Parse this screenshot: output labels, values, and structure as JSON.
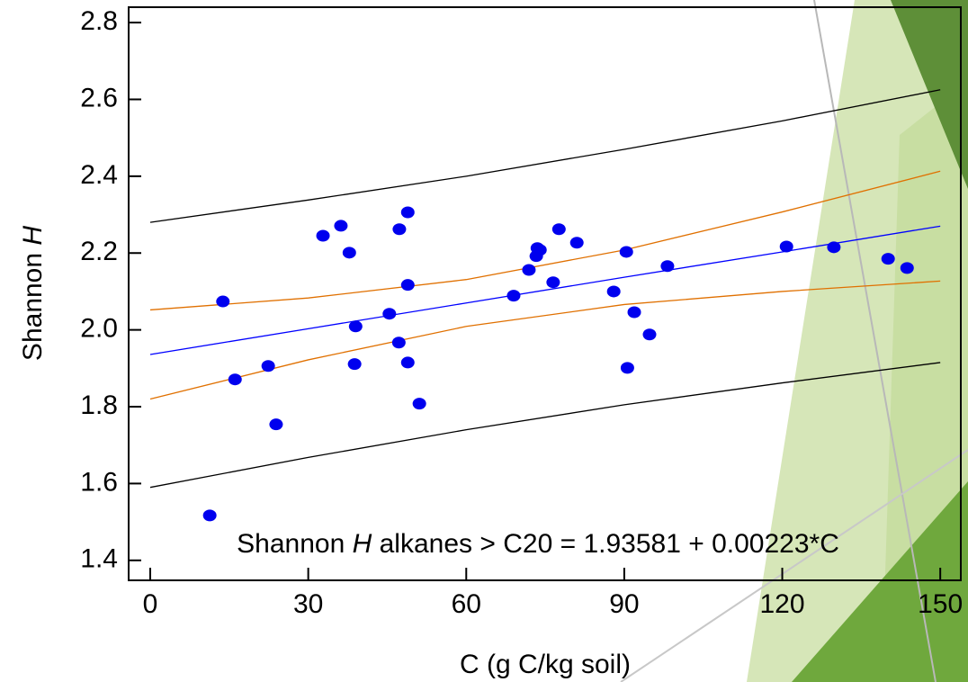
{
  "chart_data": {
    "type": "scatter",
    "xlabel": "C (g C/kg soil)",
    "ylabel_parts": [
      "Shannon",
      "H"
    ],
    "annotation_parts": [
      "Shannon",
      "H",
      "alkanes > C20 = 1.93581 + 0.00223*C"
    ],
    "xlim": [
      -4.1,
      153.9
    ],
    "ylim": [
      1.348,
      2.84
    ],
    "xticks": [
      0,
      30,
      60,
      90,
      120,
      150
    ],
    "yticks": [
      1.4,
      1.6,
      1.8,
      {
        "value": 2,
        "label": "2.0"
      },
      2.2,
      2.4,
      2.6,
      2.8
    ],
    "points": {
      "color": "#0000ee",
      "x": [
        11.3,
        13.8,
        16.1,
        22.4,
        23.9,
        32.8,
        36.2,
        37.8,
        39.0,
        38.8,
        45.4,
        47.3,
        47.2,
        48.9,
        48.9,
        48.9,
        51.1,
        69.0,
        71.9,
        73.5,
        73.3,
        74.0,
        76.5,
        77.6,
        81.0,
        88.0,
        90.4,
        90.6,
        91.9,
        94.8,
        98.2,
        120.8,
        129.8,
        140.1,
        143.7
      ],
      "y": [
        1.517,
        2.074,
        1.871,
        1.906,
        1.754,
        2.245,
        2.271,
        2.201,
        2.009,
        1.911,
        2.042,
        2.262,
        1.967,
        2.306,
        2.117,
        1.915,
        1.808,
        2.089,
        2.156,
        2.213,
        2.192,
        2.208,
        2.124,
        2.262,
        2.227,
        2.1,
        2.203,
        1.901,
        2.046,
        1.988,
        2.166,
        2.217,
        2.215,
        2.185,
        2.161
      ]
    },
    "lines_x": [
      0,
      30,
      60,
      90,
      120,
      150
    ],
    "lines": [
      {
        "color": "#0000ff",
        "values": [
          1.936,
          2.003,
          2.07,
          2.137,
          2.203,
          2.27
        ]
      },
      {
        "color": "#e07000",
        "values": [
          2.052,
          2.083,
          2.131,
          2.208,
          2.307,
          2.413
        ]
      },
      {
        "color": "#e07000",
        "values": [
          1.82,
          1.922,
          2.009,
          2.066,
          2.1,
          2.127
        ]
      },
      {
        "color": "#000000",
        "values": [
          2.28,
          2.338,
          2.4,
          2.47,
          2.544,
          2.625
        ]
      },
      {
        "color": "#000000",
        "values": [
          1.59,
          1.668,
          1.74,
          1.805,
          1.862,
          1.915
        ]
      }
    ]
  }
}
